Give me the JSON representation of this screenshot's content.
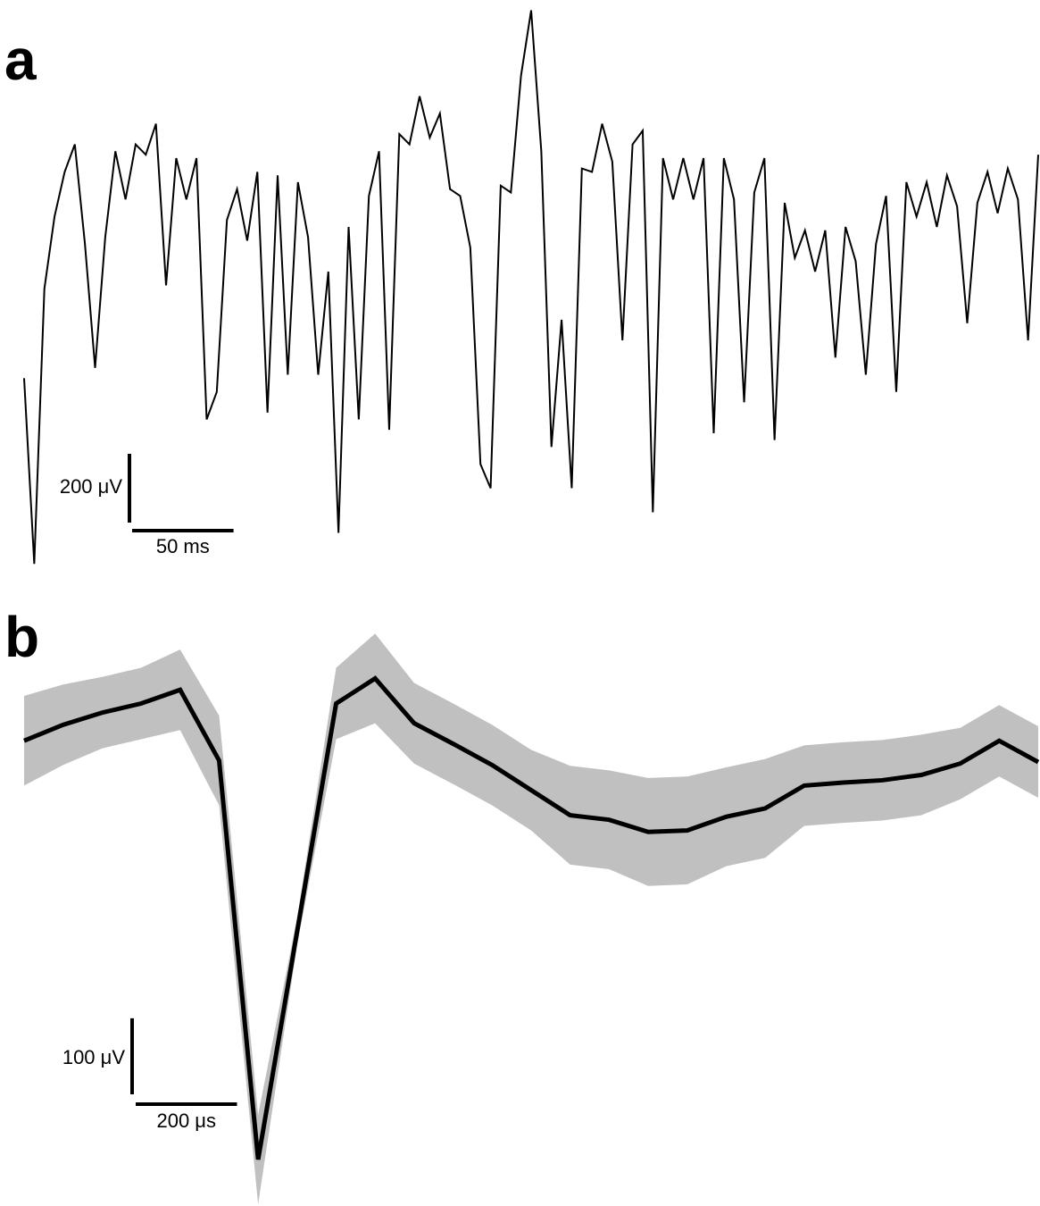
{
  "chart_data": [
    {
      "type": "trace",
      "label": "a",
      "color": "#000000",
      "x": [
        0,
        5,
        10,
        15,
        20,
        25,
        30,
        35,
        40,
        45,
        50,
        55,
        60,
        65,
        70,
        75,
        80,
        85,
        90,
        95,
        100,
        105,
        110,
        115,
        120,
        125,
        130,
        135,
        140,
        145,
        150,
        155,
        160,
        165,
        170,
        175,
        180,
        185,
        190,
        195,
        200,
        205,
        210,
        215,
        220,
        225,
        230,
        235,
        240,
        245,
        250,
        255,
        260,
        265,
        270,
        275,
        280,
        285,
        290,
        295,
        300,
        305,
        310,
        315,
        320,
        325,
        330,
        335,
        340,
        345,
        350,
        355,
        360,
        365,
        370,
        375,
        380,
        385,
        390,
        395,
        400,
        405,
        410,
        415,
        420,
        425,
        430,
        435,
        440,
        445,
        450,
        455,
        460,
        465,
        470,
        475,
        480,
        485,
        490,
        495,
        500
      ],
      "values": [
        -450,
        -990,
        -190,
        20,
        150,
        230,
        -60,
        -420,
        -40,
        210,
        70,
        230,
        200,
        290,
        -180,
        190,
        70,
        190,
        -570,
        -490,
        10,
        100,
        -50,
        150,
        -550,
        140,
        -440,
        120,
        -40,
        -440,
        -140,
        -900,
        -10,
        -570,
        80,
        210,
        -600,
        260,
        230,
        370,
        250,
        320,
        100,
        80,
        -70,
        -700,
        -770,
        110,
        90,
        430,
        620,
        210,
        -650,
        -280,
        -770,
        160,
        150,
        290,
        180,
        -340,
        230,
        270,
        -840,
        190,
        70,
        190,
        70,
        190,
        -610,
        190,
        70,
        -520,
        90,
        190,
        -630,
        60,
        -100,
        -20,
        -140,
        -20,
        -390,
        -10,
        -110,
        -440,
        -60,
        80,
        -490,
        120,
        20,
        120,
        -10,
        140,
        50,
        -290,
        60,
        150,
        30,
        160,
        70,
        -340,
        200
      ],
      "xlim": [
        0,
        500
      ],
      "ylim": [
        -1000,
        650
      ],
      "scale_bar": {
        "x_value": 50,
        "x_label": "50 ms",
        "y_value": 200,
        "y_label": "200 μV"
      }
    },
    {
      "type": "band_line",
      "label": "b",
      "color": "#000000",
      "band_color": "#c0c0c0",
      "x": [
        0,
        77,
        154,
        231,
        308,
        385,
        462,
        539,
        616,
        693,
        770,
        847,
        924,
        1001,
        1078,
        1155,
        1232,
        1309,
        1386,
        1463,
        1540,
        1617,
        1694,
        1771,
        1848,
        1925,
        2002
      ],
      "values": [
        24,
        45,
        61,
        73,
        91,
        -2,
        -527,
        -227,
        73,
        106,
        47,
        20,
        -8,
        -41,
        -74,
        -80,
        -96,
        -94,
        -76,
        -65,
        -35,
        -31,
        -28,
        -21,
        -6,
        24,
        -4
      ],
      "errors": [
        59,
        53,
        47,
        47,
        53,
        59,
        59,
        18,
        47,
        59,
        53,
        53,
        53,
        53,
        65,
        65,
        71,
        71,
        65,
        65,
        53,
        53,
        53,
        53,
        47,
        47,
        47
      ],
      "xlim": [
        0,
        2002
      ],
      "ylim": [
        -560,
        190
      ],
      "scale_bar": {
        "x_value": 200,
        "x_label": "200 μs",
        "y_value": 100,
        "y_label": "100 μV"
      }
    }
  ]
}
